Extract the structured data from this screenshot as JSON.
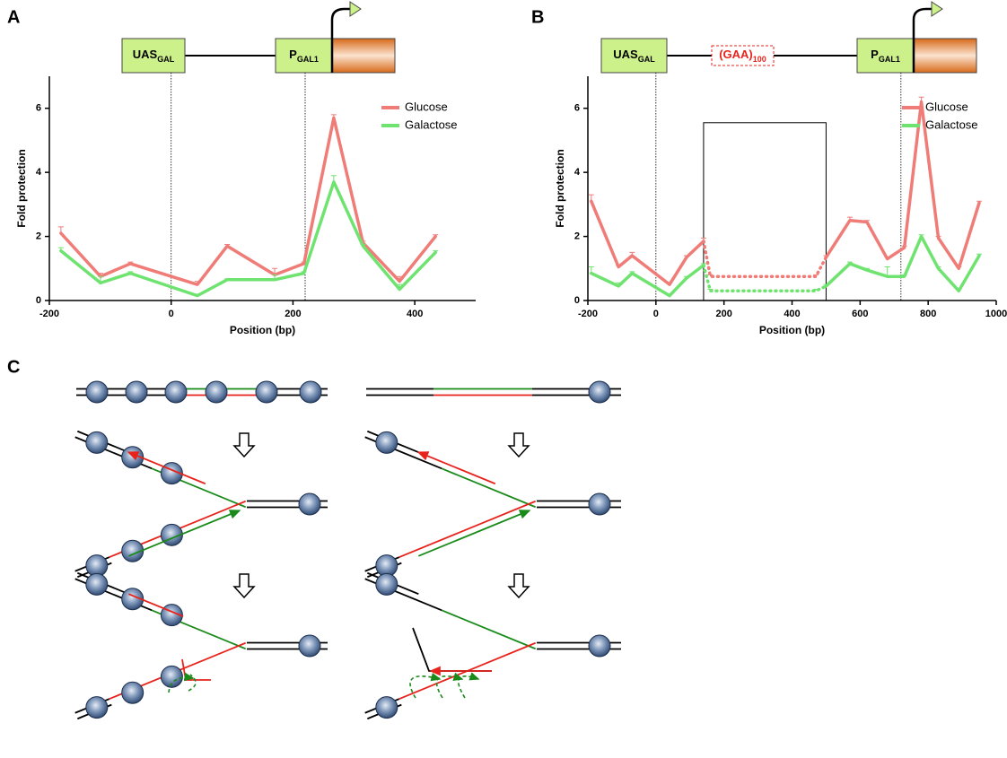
{
  "panel_labels": [
    "A",
    "B",
    "C"
  ],
  "chart_data": [
    {
      "type": "line",
      "x_label": "Position (bp)",
      "y_label": "Fold protection",
      "x": [
        -181,
        -116,
        -67,
        43,
        92,
        170,
        218,
        267,
        315,
        375,
        434
      ],
      "series": [
        {
          "name": "Glucose",
          "color": "#f07c78",
          "values": [
            2.1,
            0.75,
            1.15,
            0.5,
            1.7,
            0.8,
            1.15,
            5.7,
            1.8,
            0.6,
            2.0
          ],
          "errors": [
            0.2,
            0.1,
            0.05,
            0.1,
            0.05,
            0.2,
            0.05,
            0.1,
            0.05,
            0.15,
            0.05
          ]
        },
        {
          "name": "Galactose",
          "color": "#6fe36f",
          "values": [
            1.55,
            0.55,
            0.85,
            0.15,
            0.65,
            0.65,
            0.85,
            3.7,
            1.7,
            0.35,
            1.5
          ],
          "errors": [
            0.1,
            0.2,
            0.05,
            0.05,
            0.03,
            0.15,
            0.05,
            0.2,
            0.05,
            0.15,
            0.05
          ]
        }
      ],
      "xlim": [
        -200,
        500
      ],
      "xticks": [
        -200,
        0,
        200,
        400
      ],
      "ylim": [
        0,
        7
      ],
      "yticks": [
        0,
        2,
        4,
        6
      ],
      "vlines": [
        0,
        220
      ],
      "legend": "upper right",
      "construct": [
        {
          "main": "UAS",
          "sub": "GAL"
        },
        {
          "main": "P",
          "sub": "GAL1"
        }
      ]
    },
    {
      "type": "line",
      "x_label": "Position (bp)",
      "y_label": "Fold protection",
      "x": [
        -190,
        -110,
        -70,
        40,
        90,
        140,
        160,
        470,
        500,
        570,
        620,
        680,
        730,
        780,
        830,
        890,
        950
      ],
      "series": [
        {
          "name": "Glucose",
          "color": "#f07c78",
          "values": [
            3.1,
            1.05,
            1.4,
            0.5,
            1.35,
            1.85,
            0.75,
            0.75,
            1.35,
            2.5,
            2.45,
            1.3,
            1.65,
            6.2,
            1.95,
            1.0,
            3.05
          ],
          "errors": [
            0.2,
            0.05,
            0.1,
            0.05,
            0.05,
            0.1,
            0.05,
            0.05,
            0.05,
            0.1,
            0.05,
            0.05,
            0.05,
            0.15,
            0.05,
            0.05,
            0.05
          ]
        },
        {
          "name": "Galactose",
          "color": "#6fe36f",
          "values": [
            0.85,
            0.45,
            0.85,
            0.15,
            0.7,
            1.1,
            0.3,
            0.3,
            0.45,
            1.15,
            0.95,
            0.75,
            0.75,
            2.0,
            1.0,
            0.3,
            1.4
          ],
          "errors": [
            0.2,
            0.1,
            0.05,
            0.05,
            0.05,
            0.05,
            0.05,
            0.05,
            0.05,
            0.05,
            0.05,
            0.3,
            0.05,
            0.05,
            0.05,
            0.05,
            0.05
          ]
        }
      ],
      "xlim": [
        -200,
        1000
      ],
      "xticks": [
        -200,
        0,
        200,
        400,
        600,
        800,
        1000
      ],
      "ylim": [
        0,
        7
      ],
      "yticks": [
        0,
        2,
        4,
        6
      ],
      "vlines": [
        0,
        720
      ],
      "legend": "upper right",
      "box_x": [
        140,
        500
      ],
      "box_ymax": 5.55,
      "construct": [
        {
          "main": "UAS",
          "sub": "GAL"
        },
        {
          "main": "(GAA)",
          "sub": "100"
        },
        {
          "main": "P",
          "sub": "GAL1"
        }
      ]
    }
  ]
}
